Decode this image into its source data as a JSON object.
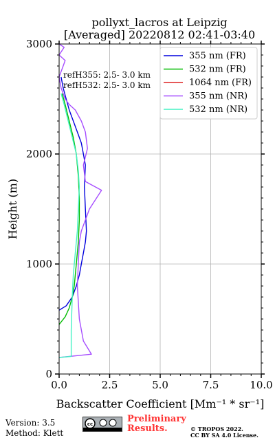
{
  "chart_data": {
    "type": "line",
    "title_line1": "pollyxt_lacros at Leipzig",
    "title_line2": "[Averaged] 20220812 02:41-03:40",
    "xlabel": "Backscatter Coefficient [Mm⁻¹ * sr⁻¹]",
    "ylabel": "Height (m)",
    "xlim": [
      0,
      10
    ],
    "ylim": [
      0,
      3000
    ],
    "x_ticks": [
      "0.0",
      "2.5",
      "5.0",
      "7.5",
      "10.0"
    ],
    "y_ticks": [
      "0",
      "1000",
      "2000",
      "3000"
    ],
    "grid": true,
    "legend_position": "top-right",
    "annotations": [
      "refH355:  2.5- 3.0 km",
      "refH532:  2.5- 3.0 km"
    ],
    "series": [
      {
        "name": "355 nm (FR)",
        "color": "#0000dd",
        "x": [
          0.0,
          0.35,
          0.65,
          0.85,
          1.0,
          1.1,
          1.2,
          1.3,
          1.35,
          1.3,
          1.25,
          1.3,
          1.2,
          1.1,
          0.9,
          0.7,
          0.5,
          0.35,
          0.2,
          0.1
        ],
        "y": [
          580,
          620,
          700,
          800,
          900,
          1000,
          1100,
          1200,
          1300,
          1500,
          1700,
          1900,
          2000,
          2100,
          2200,
          2300,
          2400,
          2500,
          2600,
          2700
        ]
      },
      {
        "name": "532 nm (FR)",
        "color": "#00bb00",
        "x": [
          0.0,
          0.3,
          0.5,
          0.65,
          0.75,
          0.85,
          0.95,
          1.0,
          1.0,
          0.95,
          0.85,
          0.7,
          0.5,
          0.3,
          0.15
        ],
        "y": [
          450,
          520,
          600,
          700,
          800,
          1000,
          1200,
          1400,
          1600,
          1800,
          2000,
          2150,
          2300,
          2450,
          2550
        ]
      },
      {
        "name": "1064 nm (FR)",
        "color": "#dd2222",
        "x": [],
        "y": []
      },
      {
        "name": "355 nm (NR)",
        "color": "#a64dff",
        "x": [
          0.0,
          1.6,
          1.2,
          1.0,
          0.9,
          0.95,
          1.0,
          1.1,
          1.3,
          1.5,
          2.1,
          1.3,
          1.2,
          1.4,
          1.3,
          1.1,
          0.8,
          0.5,
          0.3,
          0.1,
          0.0,
          0.3,
          0.0,
          0.25,
          0.0
        ],
        "y": [
          150,
          180,
          300,
          500,
          800,
          1000,
          1200,
          1300,
          1400,
          1500,
          1670,
          1750,
          1900,
          2050,
          2200,
          2300,
          2400,
          2450,
          2500,
          2600,
          2700,
          2850,
          2900,
          2970,
          3000
        ]
      },
      {
        "name": "532 nm (NR)",
        "color": "#44f2c4",
        "x": [
          0.0,
          0.6,
          0.6,
          0.65,
          0.7,
          0.8,
          0.9,
          0.95,
          1.0,
          0.95,
          0.85,
          0.65,
          0.45,
          0.25,
          0.1
        ],
        "y": [
          150,
          160,
          400,
          700,
          900,
          1100,
          1300,
          1500,
          1700,
          1850,
          2000,
          2150,
          2300,
          2450,
          2550
        ]
      }
    ]
  },
  "footer": {
    "version": "Version: 3.5",
    "method": "Method: Klett",
    "preliminary_line1": "Preliminary",
    "preliminary_line2": "Results.",
    "copyright_line1": "© TROPOS 2022.",
    "copyright_line2": "CC BY SA 4.0 License.",
    "license_badge": "cc by sa"
  }
}
